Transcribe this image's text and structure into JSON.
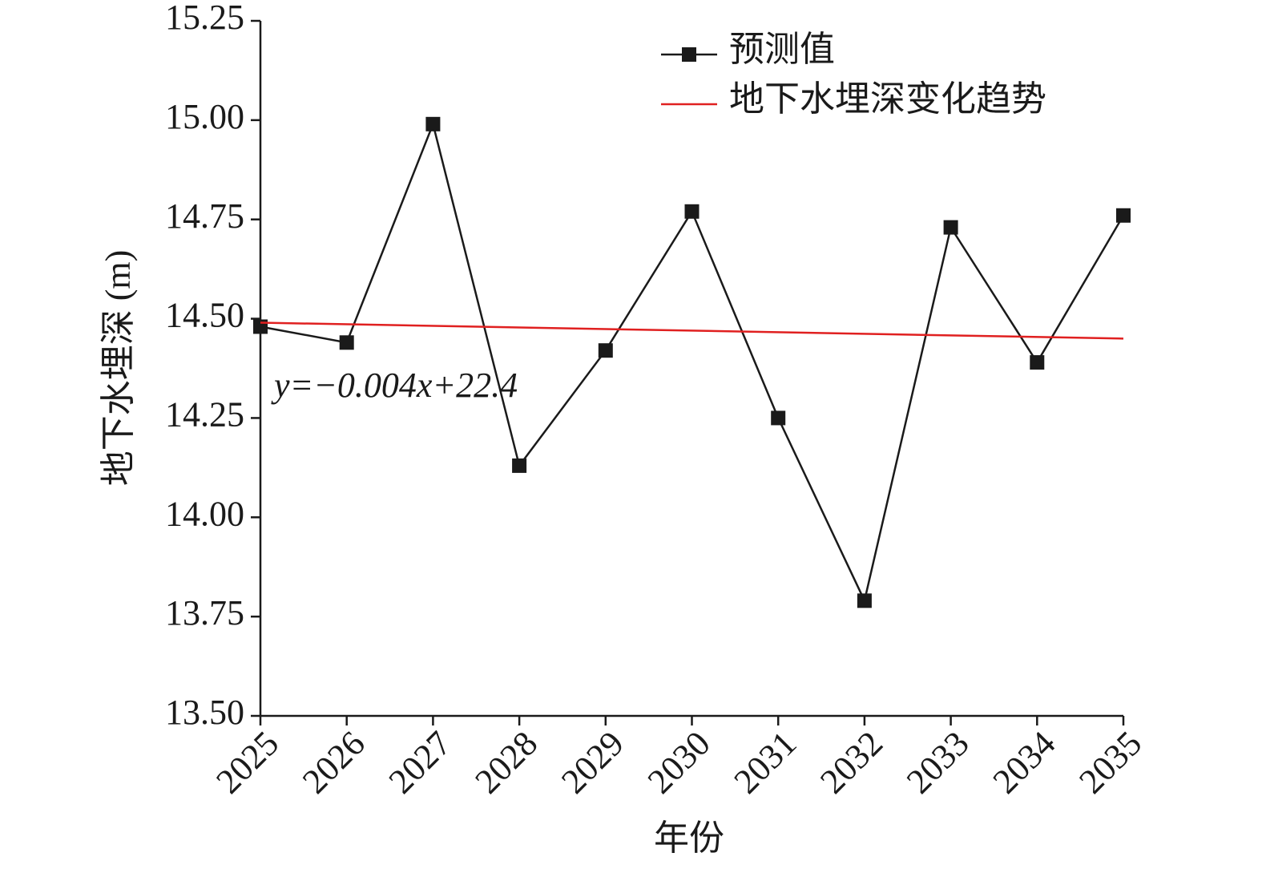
{
  "chart_data": {
    "type": "line",
    "x_label": "年份",
    "y_label": "地下水埋深 (m)",
    "x": [
      2025,
      2026,
      2027,
      2028,
      2029,
      2030,
      2031,
      2032,
      2033,
      2034,
      2035
    ],
    "series": [
      {
        "name": "预测值",
        "color": "#1a1a1a",
        "marker": "square",
        "values": [
          14.48,
          14.44,
          14.99,
          14.13,
          14.42,
          14.77,
          14.25,
          13.79,
          14.73,
          14.39,
          14.76
        ]
      },
      {
        "name": "地下水埋深变化趋势",
        "color": "#e02020",
        "x": [
          2025,
          2035
        ],
        "values": [
          14.49,
          14.45
        ]
      }
    ],
    "annotation": "y=−0.004x+22.4",
    "xlim": [
      2025,
      2035
    ],
    "xticks": [
      2025,
      2026,
      2027,
      2028,
      2029,
      2030,
      2031,
      2032,
      2033,
      2034,
      2035
    ],
    "ylim": [
      13.5,
      15.25
    ],
    "yticks": [
      {
        "value": 13.5,
        "label": "13.50"
      },
      13.75,
      {
        "value": 14,
        "label": "14.00"
      },
      14.25,
      {
        "value": 14.5,
        "label": "14.50"
      },
      14.75,
      {
        "value": 15,
        "label": "15.00"
      },
      15.25
    ],
    "legend": "upper right",
    "grid": false
  }
}
